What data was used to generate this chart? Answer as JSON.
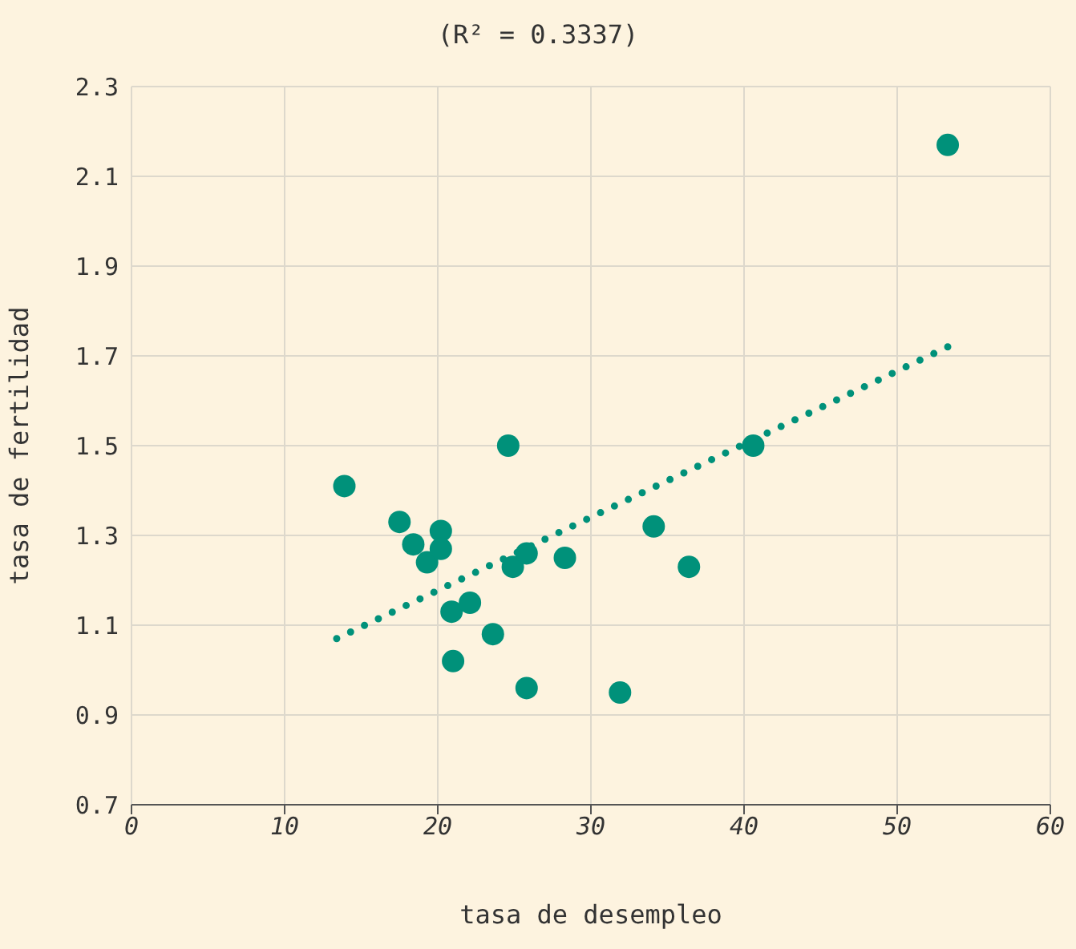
{
  "chart_data": {
    "type": "scatter",
    "title": "(R² = 0.3337)",
    "xlabel": "tasa de desempleo",
    "ylabel": "tasa de fertilidad",
    "xlim": [
      0,
      60
    ],
    "xticks": [
      0,
      10,
      20,
      30,
      40,
      50,
      60
    ],
    "ylim": [
      0.7,
      2.3
    ],
    "yticks": [
      0.7,
      0.9,
      1.1,
      1.3,
      1.5,
      1.7,
      1.9,
      2.1,
      2.3
    ],
    "grid": true,
    "series": [
      {
        "color": "#00917a",
        "marker": "circle",
        "x": [
          13.9,
          17.5,
          18.4,
          20.2,
          19.3,
          20.2,
          24.6,
          20.9,
          22.1,
          24.9,
          25.8,
          28.3,
          23.6,
          21.0,
          25.8,
          31.9,
          34.1,
          36.4,
          40.6,
          53.3
        ],
        "values": [
          1.41,
          1.33,
          1.28,
          1.31,
          1.24,
          1.27,
          1.5,
          1.13,
          1.15,
          1.23,
          1.26,
          1.25,
          1.08,
          1.02,
          0.96,
          0.95,
          1.32,
          1.23,
          1.5,
          2.17
        ]
      },
      {
        "type": "line",
        "color": "#00917a",
        "marker": "none",
        "line_style": "dotted",
        "x": [
          13.4,
          53.3
        ],
        "values": [
          1.07,
          1.72
        ]
      }
    ]
  }
}
